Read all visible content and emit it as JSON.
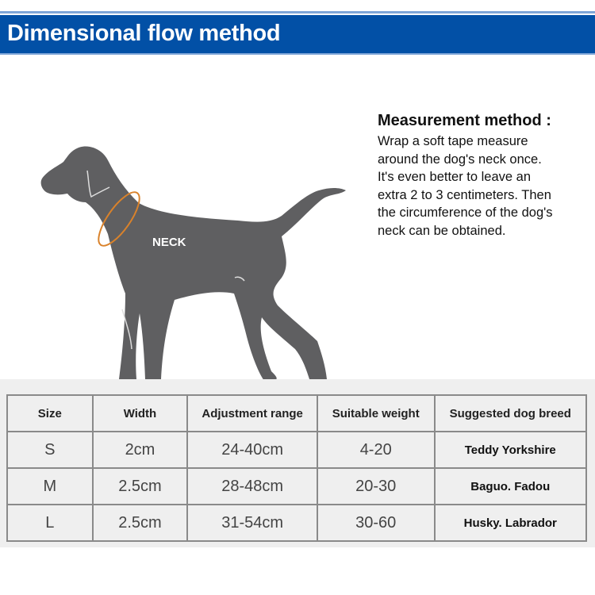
{
  "header": {
    "title": "Dimensional flow method"
  },
  "illustration": {
    "neck_label": "NECK",
    "colors": {
      "dog": "#5f5f61",
      "tape": "#d9822b"
    }
  },
  "method": {
    "title": "Measurement method :",
    "lines": [
      "Wrap a soft tape measure",
      "around the dog's neck once.",
      "It's even better to leave an",
      "extra 2 to 3 centimeters. Then",
      "the circumference of the dog's",
      "neck can be obtained."
    ]
  },
  "table": {
    "headers": [
      "Size",
      "Width",
      "Adjustment range",
      "Suitable weight",
      "Suggested dog breed"
    ],
    "rows": [
      [
        "S",
        "2cm",
        "24-40cm",
        "4-20",
        "Teddy Yorkshire"
      ],
      [
        "M",
        "2.5cm",
        "28-48cm",
        "20-30",
        "Baguo. Fadou"
      ],
      [
        "L",
        "2.5cm",
        "31-54cm",
        "30-60",
        "Husky. Labrador"
      ]
    ]
  },
  "colors": {
    "header_bg": "#0250a6",
    "table_bg": "#efefef"
  }
}
